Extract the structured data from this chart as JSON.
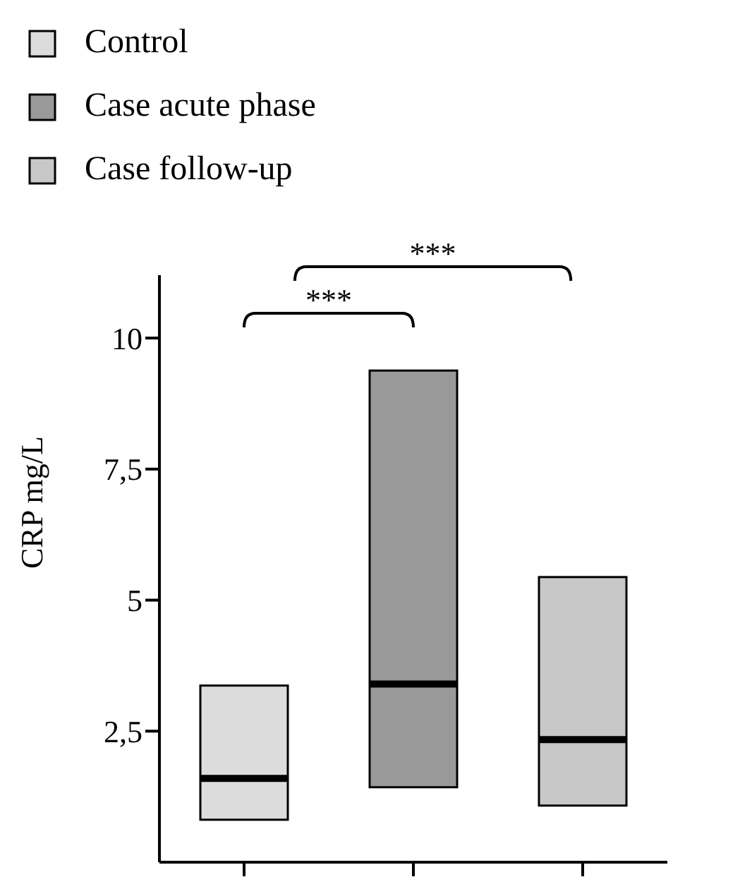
{
  "chart_data": {
    "type": "box",
    "ylabel": "CRP mg/L",
    "categories": [
      null,
      null,
      null
    ],
    "series": [
      {
        "name": "Control",
        "color": "#dcdcdc",
        "boxes": [
          {
            "low": 0.81,
            "q1": 0.81,
            "median": 1.6,
            "q3": 3.37,
            "high": 3.37
          },
          null,
          null
        ]
      },
      {
        "name": "Case acute phase",
        "color": "#999999",
        "boxes": [
          null,
          {
            "low": 1.43,
            "q1": 1.43,
            "median": 3.4,
            "q3": 9.38,
            "high": 9.38
          },
          null
        ]
      },
      {
        "name": "Case follow-up",
        "color": "#c8c8c8",
        "boxes": [
          null,
          null,
          {
            "low": 1.08,
            "q1": 1.08,
            "median": 2.34,
            "q3": 5.44,
            "high": 5.44
          }
        ]
      }
    ],
    "ylim": [
      0,
      11.2
    ],
    "yticks": [
      {
        "value": 2.5,
        "label": "2,5"
      },
      5,
      {
        "value": 7.5,
        "label": "7,5"
      },
      10
    ],
    "annotations": [
      "***",
      "***"
    ],
    "legend": "top left",
    "grid": false
  }
}
